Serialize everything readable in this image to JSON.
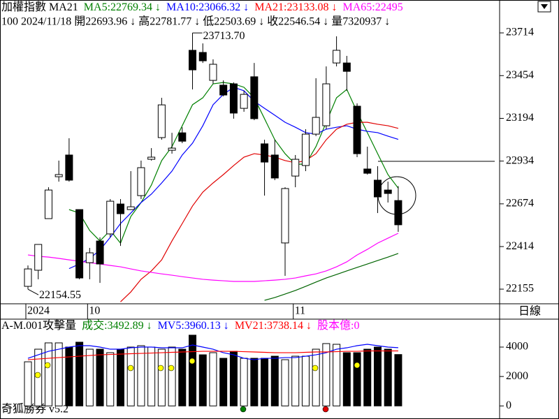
{
  "header": {
    "line1": [
      {
        "text": "加權指數 MA21",
        "color": "#000000"
      },
      {
        "text": "MA5:22769.34 ↓",
        "color": "#008000"
      },
      {
        "text": "MA10:23066.32 ↓",
        "color": "#0000ff"
      },
      {
        "text": "MA21:23133.08 ↓",
        "color": "#ff0000"
      },
      {
        "text": "MA65:22495",
        "color": "#ff00ff"
      }
    ],
    "line2": "100 2024/11/18 開22693.96 ↓ 高22781.77 ↓ 低22503.69 ↓ 收22546.54 ↓ 量7320937 ↓",
    "period": "日線",
    "volume_line": [
      {
        "text": "A-M.001攻擊量",
        "color": "#000000"
      },
      {
        "text": "成交:3492.89 ↓",
        "color": "#008000"
      },
      {
        "text": "MV5:3960.13 ↓",
        "color": "#0000ff"
      },
      {
        "text": "MV21:3738.14 ↓",
        "color": "#ff0000"
      },
      {
        "text": "股本億:0",
        "color": "#ff00ff"
      }
    ],
    "footer": "奇狐勝券 v5.2"
  },
  "chart_data": [
    {
      "type": "candlestick",
      "categories": [
        "2024",
        null,
        null,
        null,
        null,
        null,
        "10",
        null,
        null,
        null,
        null,
        null,
        null,
        null,
        null,
        null,
        null,
        null,
        null,
        null,
        null,
        null,
        null,
        null,
        null,
        null,
        "11",
        null,
        null,
        null,
        null,
        null,
        null,
        null,
        null,
        null,
        null
      ],
      "open": [
        22172,
        22270,
        22584,
        22839,
        22971,
        22639,
        22316,
        22448,
        22491,
        22673,
        22639,
        22724,
        22945,
        23077,
        23000,
        23106,
        23608,
        23595,
        23425,
        23396,
        23404,
        23255,
        23447,
        23039,
        22971,
        22436,
        22843,
        22907,
        23098,
        23149,
        23531,
        23531,
        23268,
        22886,
        22818,
        22758,
        22693.96
      ],
      "high": [
        22299,
        22427,
        22775,
        22937,
        23073,
        22639,
        22406,
        22470,
        22703,
        22703,
        22873,
        22937,
        23013,
        23319,
        23106,
        23140,
        23713.7,
        23650,
        23553,
        23425,
        23413,
        23362,
        23531,
        23064,
        23064,
        22775,
        22971,
        23128,
        23438,
        23510,
        23693,
        23574,
        23285,
        23022,
        22903,
        22809,
        22781.77
      ],
      "low": [
        22154.55,
        22215,
        22584,
        22809,
        22809,
        22215,
        22215,
        22193,
        22470,
        22418,
        22639,
        22703,
        22937,
        23064,
        22979,
        23043,
        23370,
        23531,
        23404,
        23328,
        23192,
        23234,
        23183,
        22724,
        22818,
        22236,
        22775,
        22873,
        23086,
        23128,
        23510,
        23362,
        22958,
        22852,
        22618,
        22682,
        22503.69
      ],
      "close": [
        22278,
        22427,
        22758,
        22852,
        22818,
        22223,
        22376,
        22308,
        22690,
        22614,
        22656,
        22894,
        22958,
        23276,
        23013,
        23055,
        23489,
        23544,
        23523,
        23336,
        23226,
        23340,
        23192,
        22928,
        22831,
        22767,
        22945,
        23098,
        23200,
        23404,
        23608,
        23480,
        22979,
        22860,
        22716,
        22737,
        22546.54
      ],
      "up_color": "#ffffff",
      "down_color": "#000000",
      "series": [
        {
          "color": "#008000",
          "values": [
            null,
            null,
            null,
            null,
            22639,
            22618,
            22512,
            22448,
            22512,
            22435,
            22597,
            22682,
            22788,
            22937,
            23022,
            23149,
            23277,
            23319,
            23404,
            23412,
            23404,
            23383,
            23319,
            23192,
            23064,
            22979,
            22915,
            22915,
            23022,
            23170,
            23319,
            23370,
            23234,
            23107,
            22979,
            22852,
            22769.34
          ]
        },
        {
          "color": "#0000ff",
          "values": [
            null,
            null,
            null,
            null,
            22280,
            22308,
            22342,
            22393,
            22470,
            22554,
            22618,
            22682,
            22733,
            22801,
            22873,
            22971,
            23043,
            23149,
            23277,
            23340,
            23383,
            23362,
            23298,
            23255,
            23213,
            23170,
            23140,
            23107,
            23098,
            23128,
            23140,
            23149,
            23128,
            23115,
            23107,
            23086,
            23066.32
          ]
        },
        {
          "color": "#e00000",
          "values": [
            null,
            null,
            null,
            null,
            null,
            null,
            null,
            null,
            null,
            22078,
            22138,
            22215,
            22266,
            22333,
            22448,
            22554,
            22661,
            22745,
            22801,
            22852,
            22907,
            22958,
            22979,
            22971,
            22958,
            22937,
            22924,
            22937,
            22979,
            23064,
            23128,
            23158,
            23170,
            23170,
            23158,
            23149,
            23133.08
          ]
        },
        {
          "color": "#ff00ff",
          "values": [
            22363,
            22355,
            22350,
            22342,
            22333,
            22325,
            22316,
            22308,
            22299,
            22291,
            22278,
            22266,
            22257,
            22248,
            22240,
            22231,
            22223,
            22215,
            22210,
            22206,
            22202,
            22202,
            22202,
            22206,
            22210,
            22215,
            22223,
            22236,
            22248,
            22266,
            22291,
            22321,
            22363,
            22397,
            22435,
            22465,
            22495
          ]
        },
        {
          "color": "#006400",
          "values": [
            null,
            null,
            null,
            null,
            null,
            null,
            null,
            null,
            null,
            null,
            null,
            null,
            null,
            null,
            null,
            null,
            null,
            null,
            null,
            null,
            null,
            null,
            null,
            22087,
            22104,
            22125,
            22147,
            22172,
            22198,
            22223,
            22244,
            22266,
            22287,
            22308,
            22329,
            22350,
            22372
          ]
        }
      ],
      "annotations": [
        {
          "label": "23713.70"
        },
        {
          "label": "22154.55"
        }
      ],
      "ylim": [
        22066,
        23914
      ],
      "yticks": [
        23714,
        23454,
        23194,
        22934,
        22674,
        22414,
        22155
      ]
    },
    {
      "type": "bar",
      "values": [
        3000,
        3857,
        4286,
        4286,
        4000,
        4333,
        3857,
        3857,
        3619,
        3857,
        4000,
        4095,
        4000,
        3857,
        4000,
        3857,
        4810,
        3476,
        3619,
        3238,
        3714,
        3238,
        3238,
        3238,
        3381,
        3143,
        3381,
        3381,
        3857,
        4238,
        4190,
        3619,
        3619,
        3857,
        4000,
        3857,
        3492.89
      ],
      "series": [
        {
          "color": "#0000ff",
          "values": [
            3238,
            3476,
            3714,
            3857,
            4000,
            4095,
            4095,
            4000,
            3857,
            3857,
            3952,
            4000,
            4000,
            3952,
            3952,
            3952,
            4143,
            4000,
            3857,
            3619,
            3476,
            3238,
            3143,
            3238,
            3238,
            3286,
            3286,
            3381,
            3476,
            3619,
            3857,
            3952,
            4095,
            4190,
            4095,
            4000,
            3960.13
          ]
        },
        {
          "color": "#ff0000",
          "values": [
            3143,
            3190,
            3238,
            3286,
            3333,
            3381,
            3429,
            3476,
            3500,
            3524,
            3548,
            3571,
            3595,
            3619,
            3643,
            3667,
            3690,
            3714,
            3714,
            3714,
            3714,
            3690,
            3667,
            3643,
            3619,
            3619,
            3619,
            3643,
            3667,
            3667,
            3690,
            3714,
            3714,
            3738,
            3738,
            3738,
            3738.14
          ]
        }
      ],
      "ylim": [
        -700,
        5900
      ],
      "yticks": [
        0,
        2000,
        4000
      ]
    }
  ]
}
